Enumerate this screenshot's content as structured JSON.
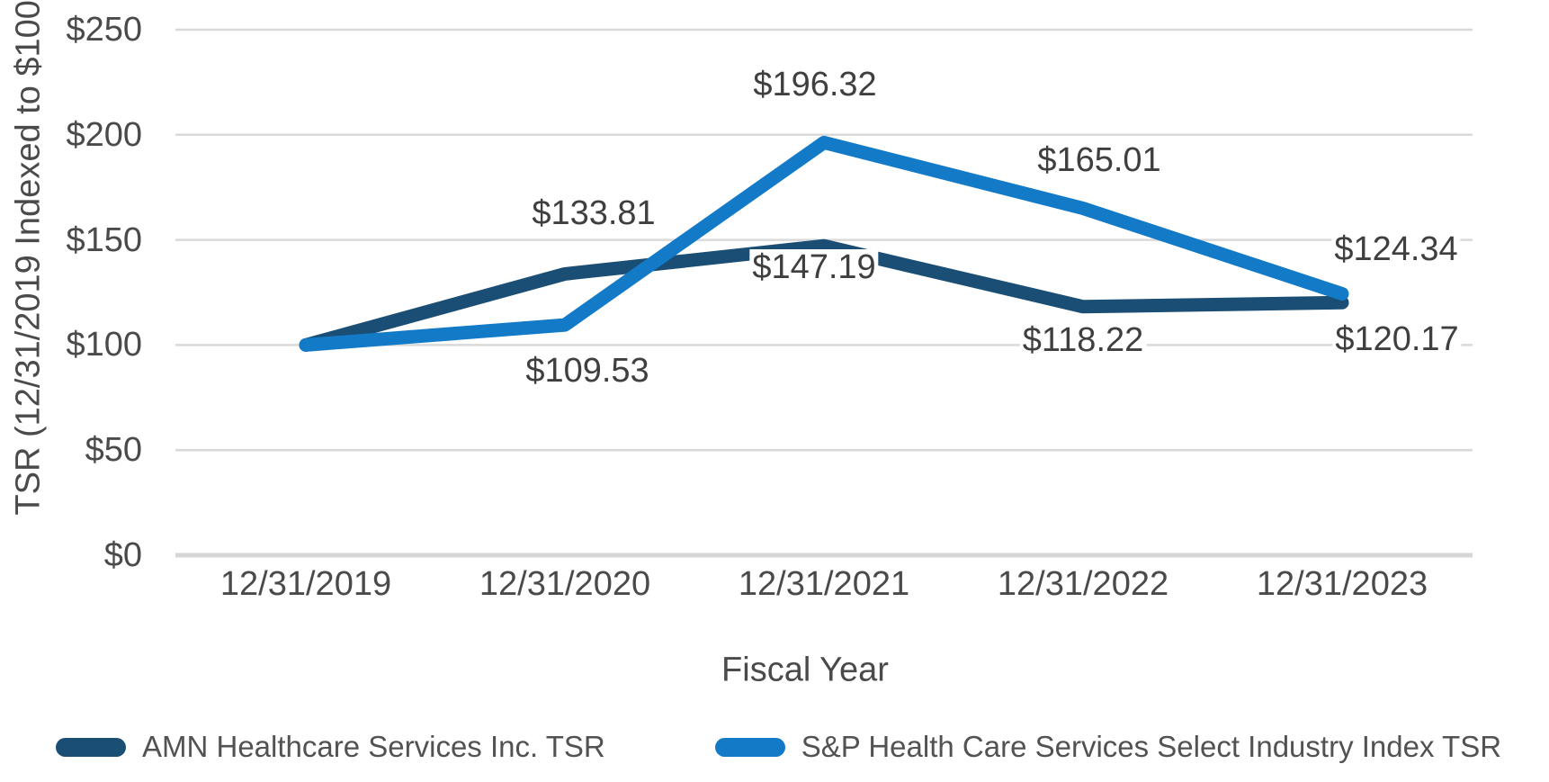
{
  "chart_data": {
    "type": "line",
    "categories": [
      "12/31/2019",
      "12/31/2020",
      "12/31/2021",
      "12/31/2022",
      "12/31/2023"
    ],
    "series": [
      {
        "name": "AMN Healthcare Services Inc. TSR",
        "values": [
          100,
          133.81,
          147.19,
          118.22,
          120.17
        ],
        "point_labels": [
          null,
          "$133.81",
          "$147.19",
          "$118.22",
          "$120.17"
        ],
        "color": "#1A4E74"
      },
      {
        "name": "S&P Health Care Services Select Industry Index TSR",
        "values": [
          100,
          109.53,
          196.32,
          165.01,
          124.34
        ],
        "point_labels": [
          null,
          "$109.53",
          "$196.32",
          "$165.01",
          "$124.34"
        ],
        "color": "#137AC8"
      }
    ],
    "title": "",
    "xlabel": "Fiscal Year",
    "ylabel": "TSR (12/31/2019 Indexed to $100)",
    "ylim": [
      0,
      250
    ],
    "yticks": [
      {
        "value": 0,
        "label": "$0"
      },
      {
        "value": 50,
        "label": "$50"
      },
      {
        "value": 100,
        "label": "$100"
      },
      {
        "value": 150,
        "label": "$150"
      },
      {
        "value": 200,
        "label": "$200"
      },
      {
        "value": 250,
        "label": "$250"
      }
    ],
    "grid": true,
    "legend_position": "bottom"
  },
  "colors": {
    "background": "#FFFFFF",
    "gridline": "#D9D9D9",
    "baseline": "#D6D6D6",
    "axis_text": "#4A4A4A",
    "data_label_text": "#3F3F3F",
    "legend_text": "#525252"
  }
}
